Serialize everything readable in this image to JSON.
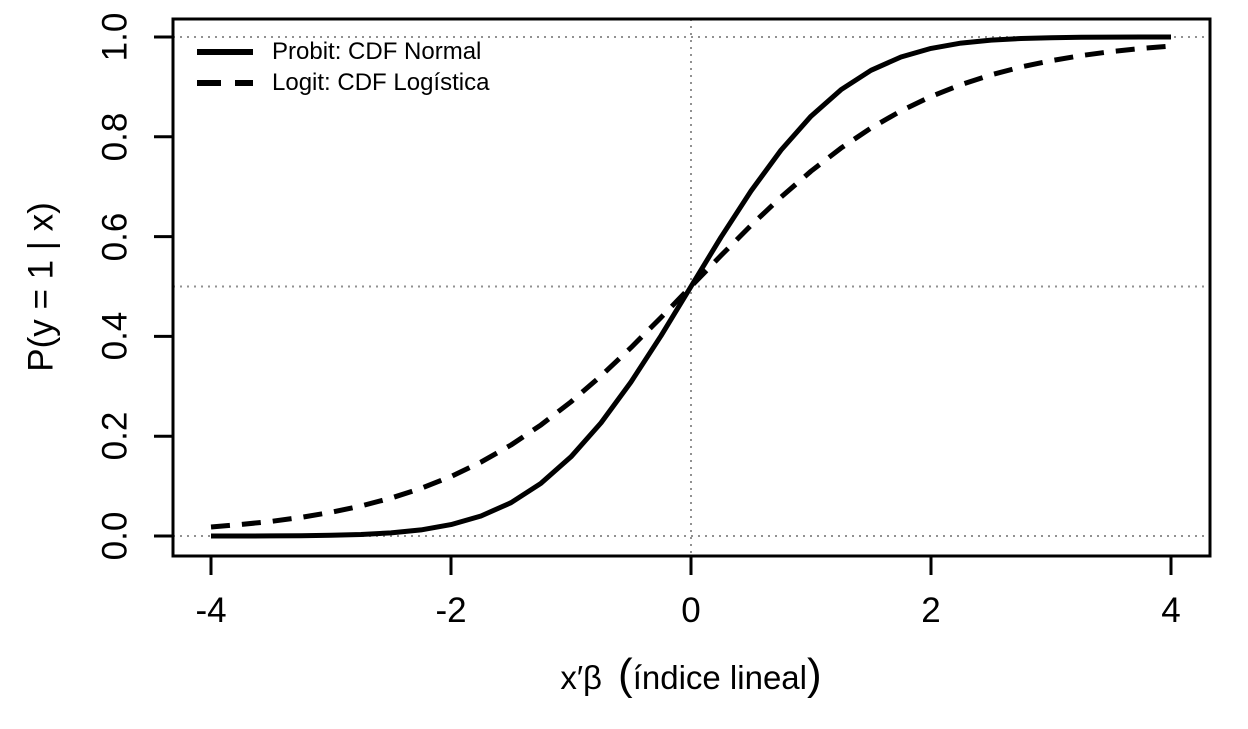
{
  "chart_data": {
    "type": "line",
    "title": "",
    "xlabel": "x′β  (índice lineal)",
    "xlabel_parts": {
      "prefix": "x′β",
      "open_paren": "(",
      "paren_content": "índice lineal",
      "close_paren": ")"
    },
    "ylabel": "P(y = 1 | x)",
    "xlim": [
      -4,
      4
    ],
    "ylim": [
      0,
      1
    ],
    "xticks": [
      -4,
      -2,
      0,
      2,
      4
    ],
    "xtick_labels": [
      "-4",
      "-2",
      "0",
      "2",
      "4"
    ],
    "yticks": [
      0,
      0.2,
      0.4,
      0.6,
      0.8,
      1
    ],
    "ytick_labels": [
      "0.0",
      "0.2",
      "0.4",
      "0.6",
      "0.8",
      "1.0"
    ],
    "grid": {
      "style": "dotted",
      "color": "#919191",
      "h_lines_y": [
        0,
        0.5,
        1
      ],
      "v_lines_x": [
        0
      ]
    },
    "legend": {
      "position": "top-left",
      "frame": false,
      "entries": [
        {
          "label": "Probit: CDF Normal",
          "line": "solid",
          "color": "#000000"
        },
        {
          "label": "Logit: CDF Logística",
          "line": "dashed",
          "color": "#000000"
        }
      ]
    },
    "line_color": "#000000",
    "x": [
      -4,
      -3.75,
      -3.5,
      -3.25,
      -3,
      -2.75,
      -2.5,
      -2.25,
      -2,
      -1.75,
      -1.5,
      -1.25,
      -1,
      -0.75,
      -0.5,
      -0.25,
      0,
      0.25,
      0.5,
      0.75,
      1,
      1.25,
      1.5,
      1.75,
      2,
      2.25,
      2.5,
      2.75,
      3,
      3.25,
      3.5,
      3.75,
      4
    ],
    "series": [
      {
        "name": "Probit: CDF Normal",
        "style": "solid",
        "values": [
          3e-05,
          9e-05,
          0.00023,
          0.00058,
          0.00135,
          0.00298,
          0.00621,
          0.01222,
          0.02275,
          0.04006,
          0.06681,
          0.10565,
          0.15866,
          0.22663,
          0.30854,
          0.40129,
          0.5,
          0.59871,
          0.69146,
          0.77337,
          0.84134,
          0.89435,
          0.93319,
          0.95994,
          0.97725,
          0.98778,
          0.99379,
          0.99702,
          0.99865,
          0.99942,
          0.99977,
          0.99991,
          0.99997
        ]
      },
      {
        "name": "Logit: CDF Logística",
        "style": "dashed",
        "values": [
          0.01799,
          0.02297,
          0.02931,
          0.03732,
          0.04743,
          0.06008,
          0.07586,
          0.09534,
          0.1192,
          0.14805,
          0.18243,
          0.2227,
          0.26894,
          0.32082,
          0.37754,
          0.43782,
          0.5,
          0.56218,
          0.62246,
          0.67918,
          0.73106,
          0.7773,
          0.81757,
          0.85195,
          0.8808,
          0.90466,
          0.92414,
          0.93992,
          0.95257,
          0.96268,
          0.97069,
          0.97703,
          0.98201
        ]
      }
    ]
  },
  "colors": {
    "foreground": "#000000",
    "background": "#ffffff",
    "grid": "#919191"
  }
}
